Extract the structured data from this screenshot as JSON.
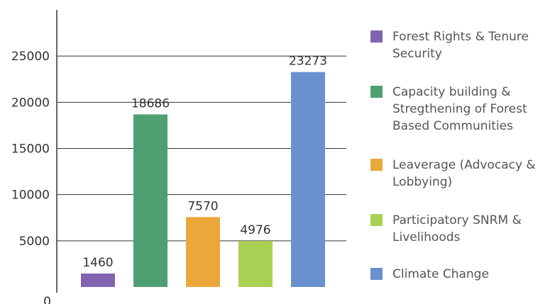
{
  "chart_data": {
    "type": "bar",
    "categories": [
      "Forest Rights & Tenure Security",
      "Capacity building & Stregthening of Forest Based Communities",
      "Leaverage (Advocacy & Lobbying)",
      "Participatory SNRM & Livelihoods",
      "Climate Change"
    ],
    "values": [
      1460,
      18686,
      7570,
      4976,
      23273
    ],
    "data_labels": [
      "1460",
      "18686",
      "7570",
      "4976",
      "23273"
    ],
    "colors": [
      "#8064b0",
      "#4ea072",
      "#eba83a",
      "#a9d052",
      "#6991cf"
    ],
    "yticks": [
      "0",
      "5000",
      "10000",
      "15000",
      "20000",
      "25000"
    ],
    "ylim": [
      0,
      30000
    ],
    "grid": true,
    "legend": "right",
    "legend_items": [
      {
        "label": "Forest Rights & Tenure Security",
        "color": "#8064b0"
      },
      {
        "label": "Capacity building & Stregthening of Forest Based Communities",
        "color": "#4ea072"
      },
      {
        "label": "Leaverage (Advocacy & Lobbying)",
        "color": "#eba83a"
      },
      {
        "label": "Participatory SNRM & Livelihoods",
        "color": "#a9d052"
      },
      {
        "label": "Climate Change",
        "color": "#6991cf"
      }
    ]
  }
}
